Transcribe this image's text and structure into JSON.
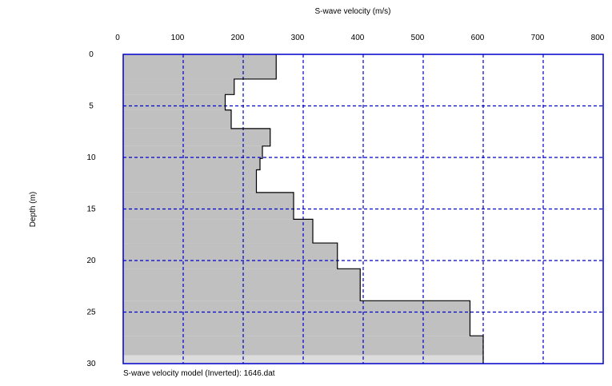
{
  "chart_data": {
    "type": "area",
    "title": "S-wave velocity (m/s)",
    "xlabel": "S-wave velocity (m/s)",
    "ylabel": "Depth (m)",
    "xlim": [
      0,
      800
    ],
    "ylim": [
      0,
      30
    ],
    "y_inverted": true,
    "x_axis_position": "top",
    "x_ticks": [
      "0",
      "100",
      "200",
      "300",
      "400",
      "500",
      "600",
      "700",
      "800"
    ],
    "y_ticks": [
      "0",
      "5",
      "10",
      "15",
      "20",
      "25",
      "30"
    ],
    "grid": true,
    "series": [
      {
        "layers": [
          {
            "top": 0.0,
            "bottom": 2.4,
            "velocity": 255
          },
          {
            "top": 2.4,
            "bottom": 3.9,
            "velocity": 185
          },
          {
            "top": 3.9,
            "bottom": 5.4,
            "velocity": 170
          },
          {
            "top": 5.4,
            "bottom": 7.2,
            "velocity": 180
          },
          {
            "top": 7.2,
            "bottom": 8.9,
            "velocity": 245
          },
          {
            "top": 8.9,
            "bottom": 10.1,
            "velocity": 232
          },
          {
            "top": 10.1,
            "bottom": 11.2,
            "velocity": 228
          },
          {
            "top": 11.2,
            "bottom": 13.4,
            "velocity": 222
          },
          {
            "top": 13.4,
            "bottom": 16.0,
            "velocity": 284
          },
          {
            "top": 16.0,
            "bottom": 18.3,
            "velocity": 316
          },
          {
            "top": 18.3,
            "bottom": 20.8,
            "velocity": 357
          },
          {
            "top": 20.8,
            "bottom": 23.9,
            "velocity": 395
          },
          {
            "top": 23.9,
            "bottom": 27.3,
            "velocity": 578
          },
          {
            "top": 27.3,
            "bottom": 29.2,
            "velocity": 600
          },
          {
            "top": 29.2,
            "bottom": 30.0,
            "velocity": 600
          }
        ]
      }
    ],
    "colors": {
      "fill": "#c0c0c0",
      "halfspace_fill": "#dcdcdc",
      "frame": "#0000cc",
      "grid": "#0000cc",
      "profile": "#000000"
    }
  },
  "footer": {
    "caption": "S-wave velocity model (Inverted): 1646.dat"
  }
}
